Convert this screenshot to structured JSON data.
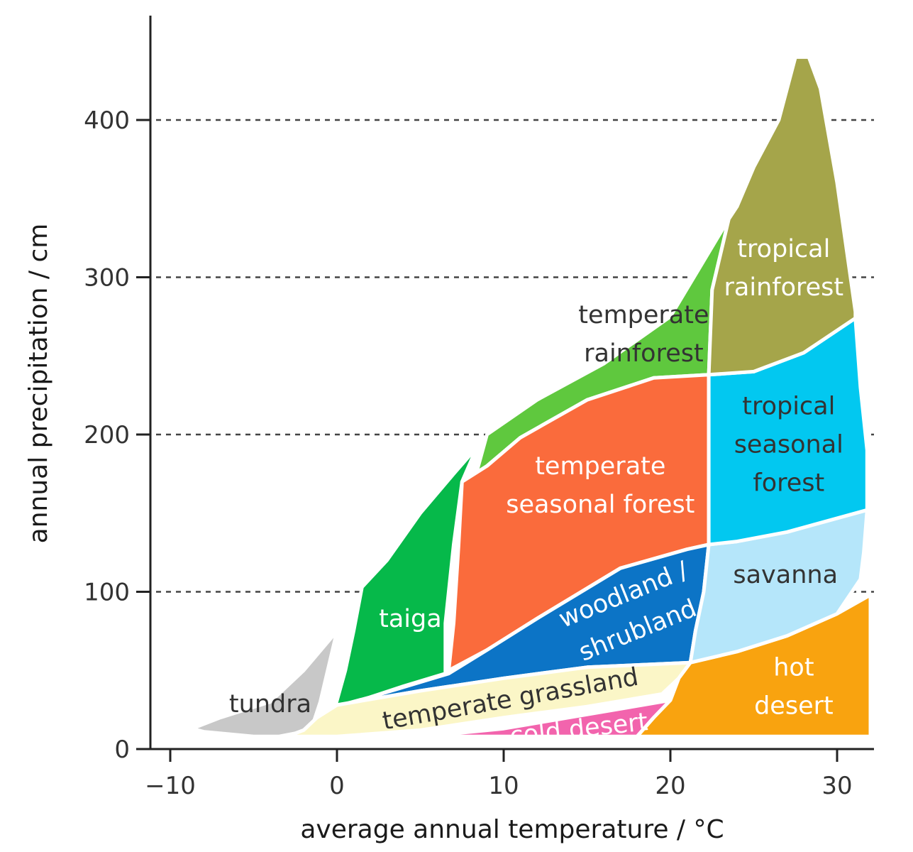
{
  "chart_data": {
    "type": "area",
    "xlabel": "average annual temperature / °C",
    "ylabel": "annual precipitation / cm",
    "xlim": [
      -11,
      32
    ],
    "ylim": [
      0,
      460
    ],
    "x_ticks": [
      {
        "value": -10,
        "label": "−10"
      },
      {
        "value": 0,
        "label": "0"
      },
      {
        "value": 10,
        "label": "10"
      },
      {
        "value": 20,
        "label": "20"
      },
      {
        "value": 30,
        "label": "30"
      }
    ],
    "y_ticks": [
      {
        "value": 0,
        "label": "0",
        "gridline": false
      },
      {
        "value": 100,
        "label": "100",
        "gridline": true
      },
      {
        "value": 200,
        "label": "200",
        "gridline": true
      },
      {
        "value": 300,
        "label": "300",
        "gridline": true
      },
      {
        "value": 400,
        "label": "400",
        "gridline": true
      }
    ],
    "grid": "dashed horizontal",
    "regions": [
      {
        "name": "tundra",
        "color": "#c8c8c8",
        "label_color": "#333333",
        "label_lines": [
          "tundra"
        ],
        "label_at": [
          -4.0,
          29
        ],
        "label_rotate": 0,
        "polygon": [
          [
            -8.7,
            13
          ],
          [
            -7,
            20
          ],
          [
            -4,
            30
          ],
          [
            -2,
            50
          ],
          [
            0,
            75
          ],
          [
            1.0,
            97
          ],
          [
            0,
            75
          ],
          [
            -1,
            30
          ],
          [
            -1.5,
            14
          ],
          [
            -2,
            11
          ],
          [
            -3.5,
            8
          ],
          [
            -5,
            8
          ],
          [
            -8,
            11
          ]
        ]
      },
      {
        "name": "taiga",
        "color": "#06b94a",
        "label_color": "#ffffff",
        "label_lines": [
          "taiga"
        ],
        "label_at": [
          4.4,
          83
        ],
        "label_rotate": 0,
        "polygon": [
          [
            -0.1,
            27
          ],
          [
            0.5,
            50
          ],
          [
            1.0,
            75
          ],
          [
            1.5,
            103
          ],
          [
            3,
            120
          ],
          [
            5,
            150
          ],
          [
            7,
            175
          ],
          [
            8.4,
            192
          ],
          [
            7.5,
            170
          ],
          [
            7,
            130
          ],
          [
            6.5,
            80
          ],
          [
            6.5,
            48
          ],
          [
            4,
            40
          ],
          [
            2,
            33
          ]
        ]
      },
      {
        "name": "temperate rainforest",
        "color": "#5fc83e",
        "label_color": "#333333",
        "label_lines": [
          "temperate",
          "rainforest"
        ],
        "label_at": [
          18.4,
          264
        ],
        "label_rotate": 0,
        "polygon": [
          [
            8.3,
            173
          ],
          [
            9,
            200
          ],
          [
            12,
            222
          ],
          [
            16,
            245
          ],
          [
            20,
            275
          ],
          [
            23.5,
            337
          ],
          [
            22.5,
            292
          ],
          [
            22.3,
            238
          ],
          [
            19,
            236
          ],
          [
            15,
            222
          ],
          [
            11,
            198
          ],
          [
            9,
            180
          ]
        ]
      },
      {
        "name": "temperate seasonal forest",
        "color": "#fa6b3c",
        "label_color": "#ffffff",
        "label_lines": [
          "temperate",
          "seasonal forest"
        ],
        "label_at": [
          15.8,
          168
        ],
        "label_rotate": 0,
        "polygon": [
          [
            7.5,
            170
          ],
          [
            9,
            180
          ],
          [
            11,
            198
          ],
          [
            15,
            222
          ],
          [
            19,
            236
          ],
          [
            22.3,
            238
          ],
          [
            22.3,
            130
          ],
          [
            21,
            127
          ],
          [
            17,
            115
          ],
          [
            12,
            83
          ],
          [
            9,
            63
          ],
          [
            6.7,
            50
          ],
          [
            7,
            80
          ],
          [
            7.3,
            130
          ]
        ]
      },
      {
        "name": "woodland / shrubland",
        "color": "#0c74c6",
        "label_color": "#ffffff",
        "label_lines": [
          "woodland /",
          "shrubland"
        ],
        "label_at": [
          17.6,
          87
        ],
        "label_rotate": -22,
        "polygon": [
          [
            -1.2,
            20
          ],
          [
            2,
            33
          ],
          [
            6.7,
            48
          ],
          [
            9,
            63
          ],
          [
            12,
            83
          ],
          [
            17,
            115
          ],
          [
            21,
            127
          ],
          [
            22.3,
            130
          ],
          [
            22,
            100
          ],
          [
            21.5,
            75
          ],
          [
            21.2,
            55
          ],
          [
            15,
            52
          ],
          [
            10,
            45
          ],
          [
            5,
            37
          ],
          [
            0,
            28
          ]
        ]
      },
      {
        "name": "temperate grassland",
        "color": "#fbf6c7",
        "label_color": "#333333",
        "label_lines": [
          "temperate grassland"
        ],
        "label_at": [
          10.4,
          32
        ],
        "label_rotate": -10,
        "polygon": [
          [
            -3,
            8
          ],
          [
            -2,
            12
          ],
          [
            -1.2,
            20
          ],
          [
            0,
            28
          ],
          [
            5,
            37
          ],
          [
            10,
            45
          ],
          [
            15,
            52
          ],
          [
            21.2,
            55
          ],
          [
            20.5,
            45
          ],
          [
            20,
            40
          ],
          [
            19.5,
            35
          ],
          [
            15,
            27
          ],
          [
            10,
            20
          ],
          [
            5,
            12
          ],
          [
            0,
            8
          ]
        ]
      },
      {
        "name": "cold desert",
        "color": "#f264ad",
        "label_color": "#ffffff",
        "label_lines": [
          "cold desert"
        ],
        "label_at": [
          14.5,
          13
        ],
        "label_rotate": -6,
        "polygon": [
          [
            5.2,
            8
          ],
          [
            10,
            13
          ],
          [
            15,
            22
          ],
          [
            20,
            31
          ],
          [
            19,
            20
          ],
          [
            18,
            8
          ]
        ]
      },
      {
        "name": "hot desert",
        "color": "#f9a30f",
        "label_color": "#ffffff",
        "label_lines": [
          "hot",
          "desert"
        ],
        "label_at": [
          27.4,
          40
        ],
        "label_rotate": 0,
        "polygon": [
          [
            18,
            8
          ],
          [
            19,
            20
          ],
          [
            20,
            31
          ],
          [
            20.5,
            45
          ],
          [
            21.2,
            55
          ],
          [
            24,
            62
          ],
          [
            27,
            72
          ],
          [
            30,
            86
          ],
          [
            32,
            98
          ],
          [
            32,
            8
          ]
        ]
      },
      {
        "name": "savanna",
        "color": "#b5e6fa",
        "label_color": "#333333",
        "label_lines": [
          "savanna"
        ],
        "label_at": [
          26.9,
          111
        ],
        "label_rotate": 0,
        "polygon": [
          [
            21.2,
            55
          ],
          [
            21.5,
            75
          ],
          [
            22,
            100
          ],
          [
            22.3,
            130
          ],
          [
            24,
            132
          ],
          [
            27,
            138
          ],
          [
            31.8,
            152
          ],
          [
            31.6,
            125
          ],
          [
            31.4,
            108
          ],
          [
            30,
            86
          ],
          [
            27,
            72
          ],
          [
            24,
            62
          ]
        ]
      },
      {
        "name": "tropical seasonal forest",
        "color": "#02c8f0",
        "label_color": "#333333",
        "label_lines": [
          "tropical",
          "seasonal",
          "forest"
        ],
        "label_at": [
          27.1,
          194
        ],
        "label_rotate": 0,
        "polygon": [
          [
            22.3,
            130
          ],
          [
            22.3,
            238
          ],
          [
            25,
            240
          ],
          [
            28,
            252
          ],
          [
            31.1,
            274
          ],
          [
            31.4,
            230
          ],
          [
            31.8,
            190
          ],
          [
            31.8,
            152
          ],
          [
            27,
            138
          ],
          [
            24,
            132
          ]
        ]
      },
      {
        "name": "tropical rainforest",
        "color": "#a5a54a",
        "label_color": "#ffffff",
        "label_lines": [
          "tropical",
          "rainforest"
        ],
        "label_at": [
          26.8,
          306
        ],
        "label_rotate": 0,
        "polygon": [
          [
            22.3,
            238
          ],
          [
            22.5,
            292
          ],
          [
            23.5,
            337
          ],
          [
            24,
            345
          ],
          [
            25,
            370
          ],
          [
            26.5,
            400
          ],
          [
            27.5,
            440
          ],
          [
            28.3,
            440
          ],
          [
            29,
            420
          ],
          [
            30,
            360
          ],
          [
            31.1,
            278
          ],
          [
            31.1,
            274
          ],
          [
            28,
            252
          ],
          [
            25,
            240
          ]
        ]
      }
    ]
  }
}
